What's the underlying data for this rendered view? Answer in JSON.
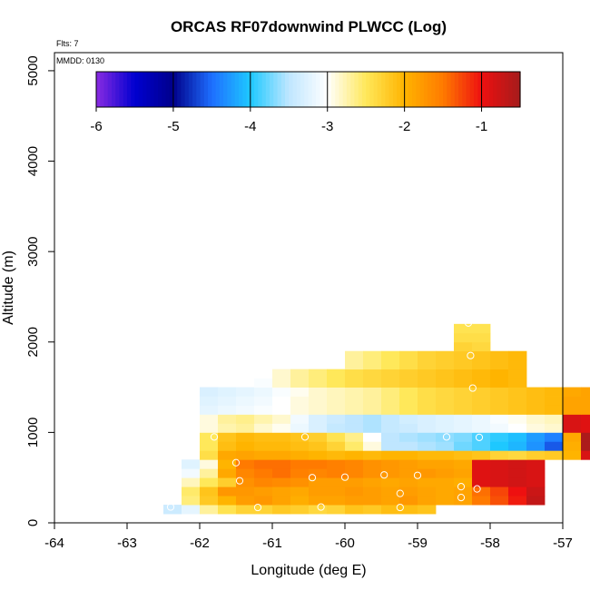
{
  "chart_data": {
    "type": "heatmap",
    "title": "ORCAS RF07downwind PLWCC (Log)",
    "xlabel": "Longitude (deg E)",
    "ylabel": "Altitude (m)",
    "xlim": [
      -64,
      -57
    ],
    "ylim": [
      0,
      5200
    ],
    "x_ticks": [
      -64,
      -63,
      -62,
      -61,
      -60,
      -59,
      -58,
      -57
    ],
    "y_ticks": [
      0,
      1000,
      2000,
      3000,
      4000,
      5000
    ],
    "flts_text": "Flts: 7",
    "mmdd_text": "MMDD: 0130",
    "colorbar": {
      "range": [
        -6,
        -0.5
      ],
      "ticks": [
        -6,
        -5,
        -4,
        -3,
        -2,
        -1
      ],
      "stops": [
        {
          "v": -6.0,
          "color": "#8a2be2"
        },
        {
          "v": -5.5,
          "color": "#0000d0"
        },
        {
          "v": -5.0,
          "color": "#00008b"
        },
        {
          "v": -4.5,
          "color": "#1e6fff"
        },
        {
          "v": -4.0,
          "color": "#1ec8ff"
        },
        {
          "v": -3.5,
          "color": "#bfe6ff"
        },
        {
          "v": -3.0,
          "color": "#ffffff"
        },
        {
          "v": -2.5,
          "color": "#ffe85a"
        },
        {
          "v": -2.0,
          "color": "#ffb400"
        },
        {
          "v": -1.5,
          "color": "#ff7a00"
        },
        {
          "v": -1.0,
          "color": "#ee1010"
        },
        {
          "v": -0.5,
          "color": "#a51c1c"
        }
      ]
    },
    "bin_width": 0.25,
    "bin_height": 100,
    "rows": [
      {
        "y": 150,
        "x0": -62.5,
        "values": [
          -3.4,
          -3.2,
          -2.7,
          -2.45,
          -2.3,
          -2.3,
          -2.2,
          -2.25,
          -2.35,
          -2.3,
          -2.15,
          -2.2,
          -2.1,
          -2.1,
          -2.15
        ]
      },
      {
        "y": 250,
        "x0": -62.25,
        "values": [
          -2.6,
          -2.2,
          -2.0,
          -1.8,
          -1.75,
          -1.85,
          -1.95,
          -1.85,
          -1.85,
          -1.8,
          -1.8,
          -1.85,
          -1.75,
          -1.85,
          -1.9,
          -1.85,
          -1.5,
          -1.3,
          -1.05,
          -0.7
        ]
      },
      {
        "y": 350,
        "x0": -62.25,
        "values": [
          -2.55,
          -2.15,
          -1.75,
          -1.75,
          -1.8,
          -1.85,
          -1.9,
          -1.8,
          -1.8,
          -1.75,
          -1.8,
          -1.85,
          -1.8,
          -1.85,
          -1.9,
          -1.85,
          -1.45,
          -1.25,
          -1.0,
          -0.75
        ]
      },
      {
        "y": 450,
        "x0": -62.25,
        "values": [
          -2.8,
          -2.5,
          -2.25,
          -1.7,
          -1.6,
          -1.65,
          -1.7,
          -1.8,
          -1.8,
          -1.8,
          -1.85,
          -1.9,
          -1.85,
          -1.9,
          -1.9,
          -1.95,
          -0.9,
          -0.85,
          -0.8,
          -0.85
        ]
      },
      {
        "y": 550,
        "x0": -62.25,
        "values": [
          -3.1,
          -2.7,
          -1.9,
          -1.6,
          -1.5,
          -1.45,
          -1.55,
          -1.6,
          -1.55,
          -1.6,
          -1.7,
          -1.75,
          -1.8,
          -1.75,
          -1.8,
          -1.85,
          -0.9,
          -0.85,
          -0.8,
          -0.85
        ]
      },
      {
        "y": 650,
        "x0": -62.25,
        "values": [
          -3.25,
          -2.9,
          -2.0,
          -1.5,
          -1.45,
          -1.45,
          -1.5,
          -1.5,
          -1.55,
          -1.6,
          -1.7,
          -1.75,
          -1.8,
          -1.85,
          -1.85,
          -1.9,
          -0.9,
          -0.85,
          -0.8,
          -0.85
        ]
      },
      {
        "y": 750,
        "x0": -62.0,
        "values": [
          -2.4,
          -1.9,
          -1.85,
          -1.9,
          -1.9,
          -1.95,
          -2.0,
          -2.05,
          -2.0,
          -2.05,
          -2.0,
          -2.0,
          -2.05,
          -2.05,
          -2.1,
          -2.15,
          -2.3,
          -2.35,
          -2.25,
          -2.2,
          -2.0,
          -0.85
        ]
      },
      {
        "y": 850,
        "x0": -62.0,
        "values": [
          -2.5,
          -2.1,
          -2.0,
          -2.05,
          -2.05,
          -2.1,
          -2.15,
          -2.3,
          -2.55,
          -2.9,
          -3.5,
          -3.5,
          -3.55,
          -3.6,
          -3.75,
          -3.85,
          -4.0,
          -4.1,
          -4.3,
          -4.6,
          -1.95,
          -0.55
        ]
      },
      {
        "y": 950,
        "x0": -62.0,
        "values": [
          -2.5,
          -2.15,
          -2.05,
          -2.1,
          -2.1,
          -2.15,
          -2.25,
          -2.45,
          -2.65,
          -3.0,
          -3.5,
          -3.55,
          -3.6,
          -3.65,
          -3.7,
          -3.85,
          -3.95,
          -4.05,
          -4.25,
          -4.4,
          -1.9,
          -0.55
        ]
      },
      {
        "y": 1050,
        "x0": -62.0,
        "values": [
          -2.9,
          -2.75,
          -2.7,
          -2.85,
          -2.95,
          -3.15,
          -3.3,
          -3.45,
          -3.5,
          -3.55,
          -3.45,
          -3.4,
          -3.3,
          -3.25,
          -3.2,
          -3.15,
          -3.1,
          -3.0,
          -2.9,
          -2.85,
          -0.85,
          -0.9
        ]
      },
      {
        "y": 1150,
        "x0": -62.0,
        "values": [
          -2.9,
          -2.7,
          -2.65,
          -2.75,
          -2.85,
          -3.1,
          -3.3,
          -3.4,
          -3.5,
          -3.55,
          -3.45,
          -3.35,
          -3.3,
          -3.25,
          -3.2,
          -3.15,
          -3.05,
          -2.95,
          -2.85,
          -2.8,
          -0.85,
          -0.9
        ]
      },
      {
        "y": 1250,
        "x0": -62.0,
        "values": [
          -3.2,
          -3.15,
          -3.1,
          -3.05,
          -3.0,
          -2.9,
          -2.85,
          -2.8,
          -2.75,
          -2.7,
          -2.6,
          -2.5,
          -2.4,
          -2.35,
          -2.3,
          -2.25,
          -2.2,
          -2.15,
          -2.1,
          -2.05,
          -1.85,
          -1.85
        ]
      },
      {
        "y": 1350,
        "x0": -62.0,
        "values": [
          -3.25,
          -3.2,
          -3.15,
          -3.1,
          -3.0,
          -2.9,
          -2.85,
          -2.8,
          -2.75,
          -2.7,
          -2.6,
          -2.5,
          -2.4,
          -2.35,
          -2.3,
          -2.25,
          -2.2,
          -2.15,
          -2.1,
          -2.05,
          -1.85,
          -1.85
        ]
      },
      {
        "y": 1450,
        "x0": -62.0,
        "values": [
          -3.3,
          -3.25,
          -3.2,
          -3.15,
          -3.05,
          -2.95,
          -2.85,
          -2.8,
          -2.75,
          -2.7,
          -2.6,
          -2.5,
          -2.4,
          -2.35,
          -2.3,
          -2.25,
          -2.2,
          -2.15,
          -2.1,
          -2.05,
          -1.9,
          -1.85
        ]
      },
      {
        "y": 1550,
        "x0": -61.25,
        "values": [
          -3.05,
          -2.85,
          -2.7,
          -2.6,
          -2.5,
          -2.4,
          -2.35,
          -2.3,
          -2.25,
          -2.2,
          -2.15,
          -2.1,
          -2.05,
          -2.0,
          -2.05
        ]
      },
      {
        "y": 1650,
        "x0": -61.25,
        "values": [
          -3.0,
          -2.85,
          -2.7,
          -2.6,
          -2.5,
          -2.4,
          -2.35,
          -2.3,
          -2.25,
          -2.2,
          -2.15,
          -2.1,
          -2.05,
          -2.0,
          -2.05
        ]
      },
      {
        "y": 1750,
        "x0": -60.0,
        "values": [
          -2.7,
          -2.6,
          -2.5,
          -2.4,
          -2.3,
          -2.25,
          -2.2,
          -2.15,
          -2.1,
          -2.05
        ]
      },
      {
        "y": 1850,
        "x0": -60.0,
        "values": [
          -2.7,
          -2.6,
          -2.5,
          -2.4,
          -2.3,
          -2.25,
          -2.2,
          -2.15,
          -2.1,
          -2.05
        ]
      },
      {
        "y": 1950,
        "x0": -58.5,
        "values": [
          -2.3,
          -2.35
        ]
      },
      {
        "y": 2050,
        "x0": -58.5,
        "values": [
          -2.4,
          -2.4
        ]
      },
      {
        "y": 2150,
        "x0": -58.5,
        "values": [
          -2.45,
          -2.45
        ]
      }
    ],
    "markers": [
      {
        "x": -62.4,
        "y": 175
      },
      {
        "x": -61.2,
        "y": 170
      },
      {
        "x": -60.33,
        "y": 175
      },
      {
        "x": -59.24,
        "y": 170
      },
      {
        "x": -59.24,
        "y": 325
      },
      {
        "x": -58.4,
        "y": 280
      },
      {
        "x": -58.4,
        "y": 400
      },
      {
        "x": -58.18,
        "y": 375
      },
      {
        "x": -61.45,
        "y": 465
      },
      {
        "x": -60.45,
        "y": 500
      },
      {
        "x": -60.0,
        "y": 505
      },
      {
        "x": -59.46,
        "y": 530
      },
      {
        "x": -59.0,
        "y": 525
      },
      {
        "x": -61.5,
        "y": 665
      },
      {
        "x": -61.8,
        "y": 950
      },
      {
        "x": -60.55,
        "y": 950
      },
      {
        "x": -59.55,
        "y": 945
      },
      {
        "x": -58.6,
        "y": 950
      },
      {
        "x": -58.15,
        "y": 945
      },
      {
        "x": -58.24,
        "y": 1490
      },
      {
        "x": -58.27,
        "y": 1850
      },
      {
        "x": -58.3,
        "y": 2210
      }
    ]
  }
}
